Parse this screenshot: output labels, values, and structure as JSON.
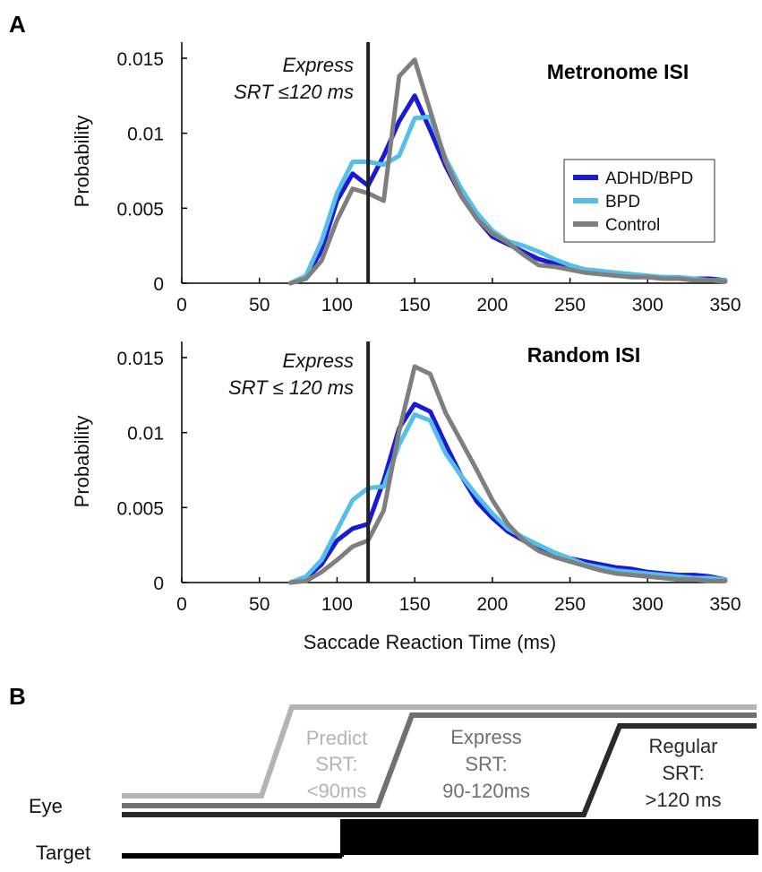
{
  "panel_a_letter": "A",
  "panel_b_letter": "B",
  "colors": {
    "adhd_bpd": "#1a1ad4",
    "bpd": "#55bfe8",
    "control": "#7f7f7f",
    "cutoff_line": "#222222"
  },
  "chart_data": [
    {
      "type": "line",
      "title": "Metronome ISI",
      "ylabel": "Probability",
      "xlabel": "",
      "xlim": [
        0,
        350
      ],
      "ylim": [
        0,
        0.015
      ],
      "x_ticks": [
        0,
        50,
        100,
        150,
        200,
        250,
        300,
        350
      ],
      "x_tick_labels": [
        "0",
        "50",
        "100",
        "150",
        "200",
        "250",
        "300",
        "350"
      ],
      "y_ticks": [
        0,
        0.005,
        0.01,
        0.015
      ],
      "y_tick_labels": [
        "0",
        "0.005",
        "0.01",
        "0.015"
      ],
      "annotation_lines": [
        "Express",
        "SRT ≤120 ms"
      ],
      "cutoff_x": 120,
      "legend": [
        "ADHD/BPD",
        "BPD",
        "Control"
      ],
      "legend_position": "right",
      "x": [
        70,
        80,
        90,
        100,
        110,
        120,
        130,
        140,
        150,
        160,
        170,
        180,
        190,
        200,
        210,
        220,
        230,
        240,
        250,
        260,
        270,
        280,
        290,
        300,
        310,
        320,
        330,
        340,
        350
      ],
      "series": [
        {
          "name": "ADHD/BPD",
          "values": [
            0.0,
            0.0004,
            0.0022,
            0.0055,
            0.0073,
            0.0065,
            0.0085,
            0.0108,
            0.0125,
            0.0102,
            0.0078,
            0.0058,
            0.0043,
            0.0031,
            0.0026,
            0.0021,
            0.0016,
            0.0013,
            0.0011,
            0.0009,
            0.0008,
            0.0006,
            0.0005,
            0.0004,
            0.0004,
            0.0003,
            0.0003,
            0.0003,
            0.0002
          ]
        },
        {
          "name": "BPD",
          "values": [
            0.0,
            0.0005,
            0.0028,
            0.006,
            0.0081,
            0.0081,
            0.0079,
            0.0085,
            0.011,
            0.0111,
            0.0083,
            0.0063,
            0.0047,
            0.0035,
            0.0028,
            0.0025,
            0.0021,
            0.0016,
            0.0012,
            0.0009,
            0.0008,
            0.0007,
            0.0006,
            0.0005,
            0.0004,
            0.0004,
            0.0003,
            0.0002,
            0.0002
          ]
        },
        {
          "name": "Control",
          "values": [
            0.0,
            0.0003,
            0.0015,
            0.0042,
            0.0063,
            0.006,
            0.0055,
            0.0138,
            0.0149,
            0.0115,
            0.0081,
            0.0058,
            0.0043,
            0.0033,
            0.0027,
            0.0019,
            0.0012,
            0.0011,
            0.0009,
            0.0007,
            0.0006,
            0.0005,
            0.0004,
            0.0004,
            0.0003,
            0.0003,
            0.0002,
            0.0002,
            0.0001
          ]
        }
      ]
    },
    {
      "type": "line",
      "title": "Random ISI",
      "ylabel": "Probability",
      "xlabel": "Saccade Reaction Time (ms)",
      "xlim": [
        0,
        350
      ],
      "ylim": [
        0,
        0.015
      ],
      "x_ticks": [
        0,
        50,
        100,
        150,
        200,
        250,
        300,
        350
      ],
      "x_tick_labels": [
        "0",
        "50",
        "100",
        "150",
        "200",
        "250",
        "300",
        "350"
      ],
      "y_ticks": [
        0,
        0.005,
        0.01,
        0.015
      ],
      "y_tick_labels": [
        "0",
        "0.005",
        "0.01",
        "0.015"
      ],
      "annotation_lines": [
        "Express",
        "SRT ≤ 120 ms"
      ],
      "cutoff_x": 120,
      "x": [
        70,
        80,
        90,
        100,
        110,
        120,
        130,
        140,
        150,
        160,
        170,
        180,
        190,
        200,
        210,
        220,
        230,
        240,
        250,
        260,
        270,
        280,
        290,
        300,
        310,
        320,
        330,
        340,
        350
      ],
      "series": [
        {
          "name": "ADHD/BPD",
          "values": [
            0.0,
            0.0003,
            0.0012,
            0.0028,
            0.0036,
            0.0039,
            0.0068,
            0.0103,
            0.0119,
            0.0114,
            0.0092,
            0.0071,
            0.0054,
            0.0043,
            0.0034,
            0.0028,
            0.0023,
            0.0019,
            0.0016,
            0.0014,
            0.0012,
            0.001,
            0.0009,
            0.0007,
            0.0006,
            0.0005,
            0.0005,
            0.0004,
            0.0002
          ]
        },
        {
          "name": "BPD",
          "values": [
            0.0,
            0.0004,
            0.0015,
            0.0035,
            0.0055,
            0.0063,
            0.0064,
            0.0092,
            0.0112,
            0.0108,
            0.0086,
            0.0071,
            0.0058,
            0.0046,
            0.0036,
            0.003,
            0.0025,
            0.002,
            0.0016,
            0.0012,
            0.001,
            0.0008,
            0.0007,
            0.0006,
            0.0005,
            0.0004,
            0.0003,
            0.0003,
            0.0002
          ]
        },
        {
          "name": "Control",
          "values": [
            0.0,
            0.0001,
            0.0007,
            0.0015,
            0.0024,
            0.0028,
            0.0048,
            0.0101,
            0.0144,
            0.0139,
            0.0113,
            0.0094,
            0.0075,
            0.0055,
            0.0039,
            0.0028,
            0.0021,
            0.0017,
            0.0014,
            0.0011,
            0.0008,
            0.0006,
            0.0005,
            0.0004,
            0.0003,
            0.0002,
            0.0002,
            0.0001,
            0.0001
          ]
        }
      ]
    }
  ],
  "diagram": {
    "eye_label": "Eye",
    "target_label": "Target",
    "predict": {
      "line1": "Predict",
      "line2": "SRT:",
      "line3": "<90ms",
      "color": "#b4b4b4"
    },
    "express": {
      "line1": "Express",
      "line2": "SRT:",
      "line3": "90-120ms",
      "color": "#707070"
    },
    "regular": {
      "line1": "Regular",
      "line2": "SRT:",
      "line3": ">120 ms",
      "color": "#2a2a2a"
    }
  }
}
